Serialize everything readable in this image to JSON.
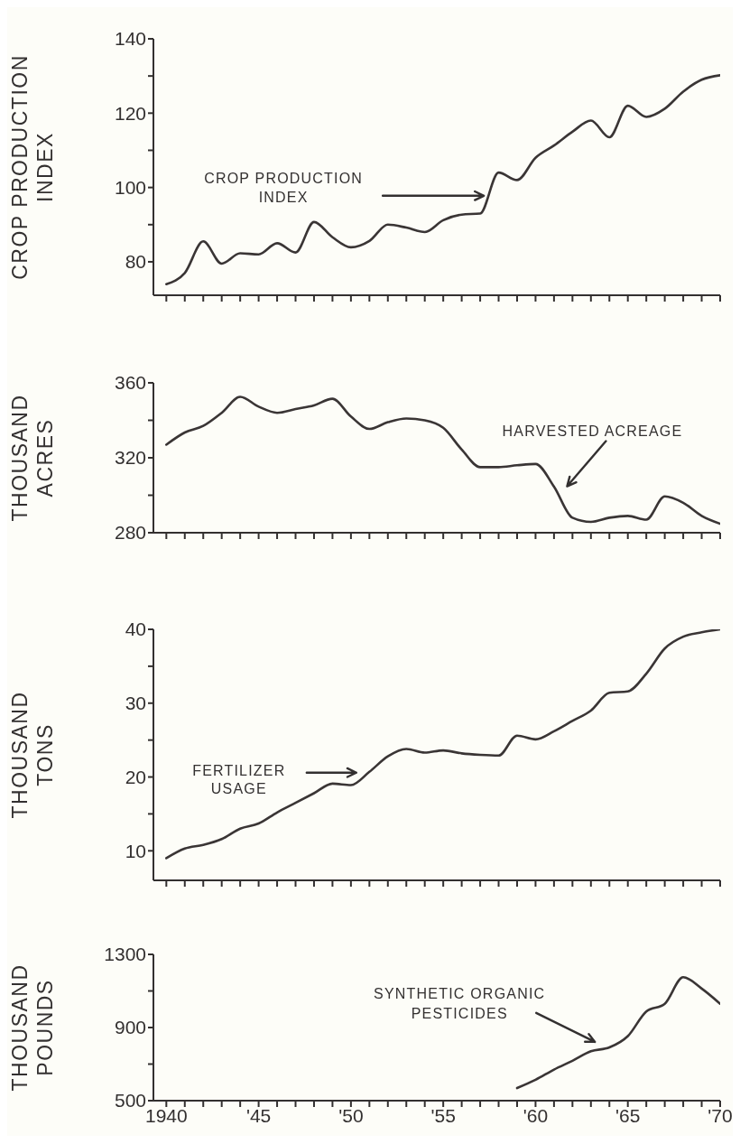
{
  "chart_data": [
    {
      "type": "line",
      "ylabel": "CROP PRODUCTION\nINDEX",
      "color": "#3a3535",
      "x": [
        1940,
        1941,
        1942,
        1943,
        1944,
        1945,
        1946,
        1947,
        1948,
        1949,
        1950,
        1951,
        1952,
        1953,
        1954,
        1955,
        1956,
        1957,
        1958,
        1959,
        1960,
        1961,
        1962,
        1963,
        1964,
        1965,
        1966,
        1967,
        1968,
        1969,
        1970
      ],
      "values": [
        74,
        77,
        85.5,
        79.5,
        82.3,
        82,
        85,
        82.5,
        90.7,
        86.6,
        83.9,
        85.6,
        90,
        89.2,
        88,
        91.2,
        92.7,
        93,
        104,
        102,
        108,
        111.3,
        115,
        118,
        113.5,
        122,
        119,
        121.2,
        125.8,
        129,
        130.2
      ],
      "xlim": [
        1939.3,
        1970
      ],
      "ylim": [
        71,
        140
      ],
      "xticks": [
        {
          "value": 1940,
          "label": null
        },
        {
          "value": 1941,
          "label": null
        },
        {
          "value": 1942,
          "label": null
        },
        {
          "value": 1943,
          "label": null
        },
        {
          "value": 1944,
          "label": null
        },
        {
          "value": 1945,
          "label": null
        },
        {
          "value": 1946,
          "label": null
        },
        {
          "value": 1947,
          "label": null
        },
        {
          "value": 1948,
          "label": null
        },
        {
          "value": 1949,
          "label": null
        },
        {
          "value": 1950,
          "label": null
        },
        {
          "value": 1951,
          "label": null
        },
        {
          "value": 1952,
          "label": null
        },
        {
          "value": 1953,
          "label": null
        },
        {
          "value": 1954,
          "label": null
        },
        {
          "value": 1955,
          "label": null
        },
        {
          "value": 1956,
          "label": null
        },
        {
          "value": 1957,
          "label": null
        },
        {
          "value": 1958,
          "label": null
        },
        {
          "value": 1959,
          "label": null
        },
        {
          "value": 1960,
          "label": null
        },
        {
          "value": 1961,
          "label": null
        },
        {
          "value": 1962,
          "label": null
        },
        {
          "value": 1963,
          "label": null
        },
        {
          "value": 1964,
          "label": null
        },
        {
          "value": 1965,
          "label": null
        },
        {
          "value": 1966,
          "label": null
        },
        {
          "value": 1967,
          "label": null
        },
        {
          "value": 1968,
          "label": null
        },
        {
          "value": 1969,
          "label": null
        },
        {
          "value": 1970,
          "label": null
        }
      ],
      "yticks": [
        80,
        {
          "value": 90,
          "label": null
        },
        100,
        {
          "value": 110,
          "label": null
        },
        120,
        {
          "value": 130,
          "label": null
        },
        140
      ],
      "tick_labels": "y",
      "annotations": [
        "CROP PRODUCTION\nINDEX"
      ]
    },
    {
      "type": "line",
      "ylabel": "THOUSAND\nACRES",
      "color": "#3a3535",
      "x": [
        1940,
        1941,
        1942,
        1943,
        1944,
        1945,
        1946,
        1947,
        1948,
        1949,
        1950,
        1951,
        1952,
        1953,
        1954,
        1955,
        1956,
        1957,
        1958,
        1959,
        1960,
        1961,
        1962,
        1963,
        1964,
        1965,
        1966,
        1967,
        1968,
        1969,
        1970
      ],
      "values": [
        327,
        333.5,
        337,
        344,
        352.5,
        347.3,
        344,
        346,
        348,
        351.5,
        342,
        335.4,
        339,
        341,
        340,
        336,
        324.4,
        315,
        315,
        316,
        316.7,
        304.6,
        288,
        285.8,
        288,
        289,
        287,
        299.4,
        296,
        289,
        284.8
      ],
      "xlim": [
        1939.3,
        1970
      ],
      "ylim": [
        280,
        360
      ],
      "xticks": [
        {
          "value": 1940,
          "label": null
        },
        {
          "value": 1941,
          "label": null
        },
        {
          "value": 1942,
          "label": null
        },
        {
          "value": 1943,
          "label": null
        },
        {
          "value": 1944,
          "label": null
        },
        {
          "value": 1945,
          "label": null
        },
        {
          "value": 1946,
          "label": null
        },
        {
          "value": 1947,
          "label": null
        },
        {
          "value": 1948,
          "label": null
        },
        {
          "value": 1949,
          "label": null
        },
        {
          "value": 1950,
          "label": null
        },
        {
          "value": 1951,
          "label": null
        },
        {
          "value": 1952,
          "label": null
        },
        {
          "value": 1953,
          "label": null
        },
        {
          "value": 1954,
          "label": null
        },
        {
          "value": 1955,
          "label": null
        },
        {
          "value": 1956,
          "label": null
        },
        {
          "value": 1957,
          "label": null
        },
        {
          "value": 1958,
          "label": null
        },
        {
          "value": 1959,
          "label": null
        },
        {
          "value": 1960,
          "label": null
        },
        {
          "value": 1961,
          "label": null
        },
        {
          "value": 1962,
          "label": null
        },
        {
          "value": 1963,
          "label": null
        },
        {
          "value": 1964,
          "label": null
        },
        {
          "value": 1965,
          "label": null
        },
        {
          "value": 1966,
          "label": null
        },
        {
          "value": 1967,
          "label": null
        },
        {
          "value": 1968,
          "label": null
        },
        {
          "value": 1969,
          "label": null
        },
        {
          "value": 1970,
          "label": null
        }
      ],
      "yticks": [
        280,
        {
          "value": 300,
          "label": null
        },
        320,
        {
          "value": 340,
          "label": null
        },
        360
      ],
      "tick_labels": "y",
      "annotations": [
        "HARVESTED ACREAGE"
      ]
    },
    {
      "type": "line",
      "ylabel": "THOUSAND\nTONS",
      "color": "#3a3535",
      "x": [
        1940,
        1941,
        1942,
        1943,
        1944,
        1945,
        1946,
        1947,
        1948,
        1949,
        1950,
        1951,
        1952,
        1953,
        1954,
        1955,
        1956,
        1957,
        1958,
        1959,
        1960,
        1961,
        1962,
        1963,
        1964,
        1965,
        1966,
        1967,
        1968,
        1969,
        1970
      ],
      "values": [
        9,
        10.3,
        10.8,
        11.6,
        13,
        13.7,
        15.2,
        16.5,
        17.8,
        19.1,
        18.9,
        20.7,
        22.8,
        23.8,
        23.3,
        23.6,
        23.2,
        23,
        22.9,
        25.6,
        25.1,
        26.2,
        27.6,
        29,
        31.4,
        31.6,
        34,
        37.4,
        39,
        39.6,
        40
      ],
      "xlim": [
        1939.3,
        1970
      ],
      "ylim": [
        6,
        40
      ],
      "xticks": [
        {
          "value": 1940,
          "label": null
        },
        {
          "value": 1941,
          "label": null
        },
        {
          "value": 1942,
          "label": null
        },
        {
          "value": 1943,
          "label": null
        },
        {
          "value": 1944,
          "label": null
        },
        {
          "value": 1945,
          "label": null
        },
        {
          "value": 1946,
          "label": null
        },
        {
          "value": 1947,
          "label": null
        },
        {
          "value": 1948,
          "label": null
        },
        {
          "value": 1949,
          "label": null
        },
        {
          "value": 1950,
          "label": null
        },
        {
          "value": 1951,
          "label": null
        },
        {
          "value": 1952,
          "label": null
        },
        {
          "value": 1953,
          "label": null
        },
        {
          "value": 1954,
          "label": null
        },
        {
          "value": 1955,
          "label": null
        },
        {
          "value": 1956,
          "label": null
        },
        {
          "value": 1957,
          "label": null
        },
        {
          "value": 1958,
          "label": null
        },
        {
          "value": 1959,
          "label": null
        },
        {
          "value": 1960,
          "label": null
        },
        {
          "value": 1961,
          "label": null
        },
        {
          "value": 1962,
          "label": null
        },
        {
          "value": 1963,
          "label": null
        },
        {
          "value": 1964,
          "label": null
        },
        {
          "value": 1965,
          "label": null
        },
        {
          "value": 1966,
          "label": null
        },
        {
          "value": 1967,
          "label": null
        },
        {
          "value": 1968,
          "label": null
        },
        {
          "value": 1969,
          "label": null
        },
        {
          "value": 1970,
          "label": null
        }
      ],
      "yticks": [
        10,
        {
          "value": 15,
          "label": null
        },
        20,
        {
          "value": 25,
          "label": null
        },
        30,
        {
          "value": 35,
          "label": null
        },
        40
      ],
      "tick_labels": "y",
      "annotations": [
        "FERTILIZER\nUSAGE"
      ]
    },
    {
      "type": "line",
      "ylabel": "THOUSAND\nPOUNDS",
      "color": "#3a3535",
      "x": [
        1959,
        1960,
        1961,
        1962,
        1963,
        1964,
        1965,
        1966,
        1967,
        1968,
        1969,
        1970
      ],
      "values": [
        569,
        614,
        670,
        718,
        770,
        791,
        853,
        988,
        1030,
        1175,
        1113,
        1030
      ],
      "xlim": [
        1939.3,
        1970
      ],
      "ylim": [
        500,
        1300
      ],
      "xticks": [
        1940,
        {
          "value": 1941,
          "label": null
        },
        {
          "value": 1942,
          "label": null
        },
        {
          "value": 1943,
          "label": null
        },
        {
          "value": 1944,
          "label": null
        },
        {
          "value": 1945,
          "label": "'45"
        },
        {
          "value": 1946,
          "label": null
        },
        {
          "value": 1947,
          "label": null
        },
        {
          "value": 1948,
          "label": null
        },
        {
          "value": 1949,
          "label": null
        },
        {
          "value": 1950,
          "label": "'50"
        },
        {
          "value": 1951,
          "label": null
        },
        {
          "value": 1952,
          "label": null
        },
        {
          "value": 1953,
          "label": null
        },
        {
          "value": 1954,
          "label": null
        },
        {
          "value": 1955,
          "label": "'55"
        },
        {
          "value": 1956,
          "label": null
        },
        {
          "value": 1957,
          "label": null
        },
        {
          "value": 1958,
          "label": null
        },
        {
          "value": 1959,
          "label": null
        },
        {
          "value": 1960,
          "label": "'60"
        },
        {
          "value": 1961,
          "label": null
        },
        {
          "value": 1962,
          "label": null
        },
        {
          "value": 1963,
          "label": null
        },
        {
          "value": 1964,
          "label": null
        },
        {
          "value": 1965,
          "label": "'65"
        },
        {
          "value": 1966,
          "label": null
        },
        {
          "value": 1967,
          "label": null
        },
        {
          "value": 1968,
          "label": null
        },
        {
          "value": 1969,
          "label": null
        },
        {
          "value": 1970,
          "label": "'70"
        }
      ],
      "yticks": [
        500,
        {
          "value": 700,
          "label": null
        },
        900,
        {
          "value": 1100,
          "label": null
        },
        1300
      ],
      "annotations": [
        "SYNTHETIC ORGANIC\nPESTICIDES"
      ]
    }
  ]
}
